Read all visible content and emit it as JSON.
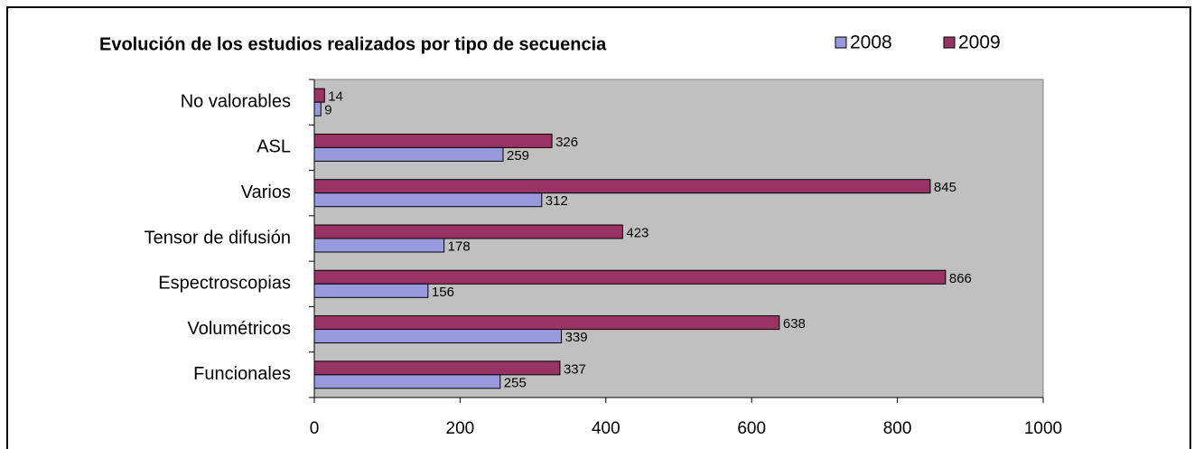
{
  "chart_data": {
    "type": "bar",
    "orientation": "horizontal",
    "title": "Evolución de los estudios realizados por tipo de secuencia",
    "categories": [
      "No valorables",
      "ASL",
      "Varios",
      "Tensor de difusión",
      "Espectroscopias",
      "Volumétricos",
      "Funcionales"
    ],
    "series": [
      {
        "name": "2008",
        "color": "#9999dd",
        "values": [
          9,
          259,
          312,
          178,
          156,
          339,
          255
        ]
      },
      {
        "name": "2009",
        "color": "#993366",
        "values": [
          14,
          326,
          845,
          423,
          866,
          638,
          337
        ]
      }
    ],
    "xlim": [
      0,
      1000
    ],
    "xticks": [
      0,
      200,
      400,
      600,
      800,
      1000
    ],
    "plot_background": "#c0c0c0"
  }
}
